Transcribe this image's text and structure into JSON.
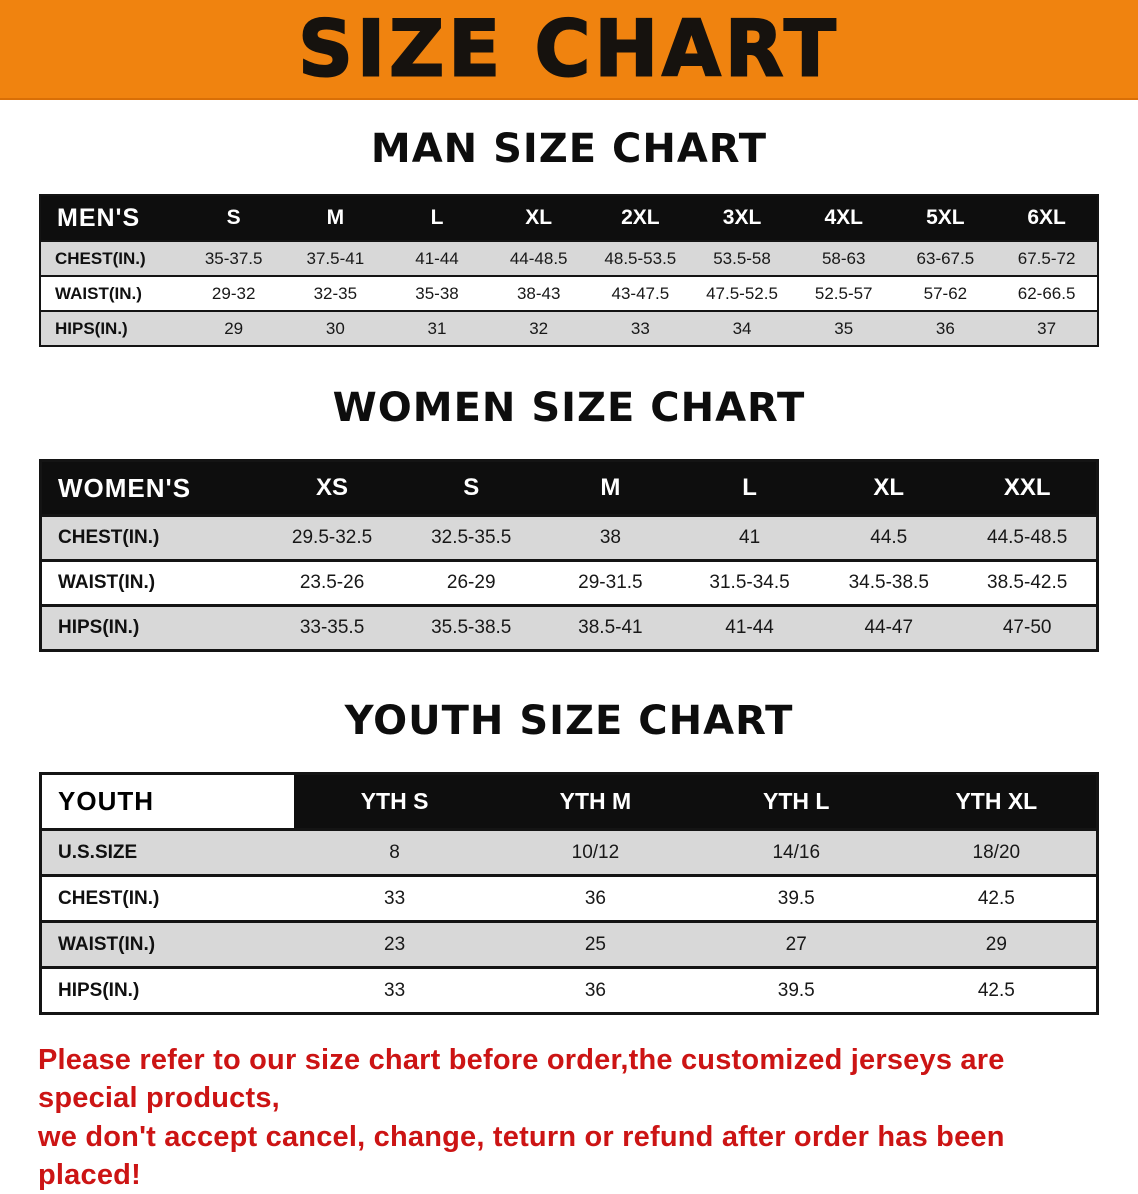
{
  "banner": {
    "title": "SIZE CHART",
    "bg_color": "#f0830f",
    "text_color": "#16120e"
  },
  "theme": {
    "header_bg": "#0e0e0e",
    "header_text": "#ffffff",
    "stripe": "#d8d8d8",
    "border": "#141414"
  },
  "men": {
    "heading": "MAN SIZE CHART",
    "table": {
      "header": [
        "MEN'S",
        "S",
        "M",
        "L",
        "XL",
        "2XL",
        "3XL",
        "4XL",
        "5XL",
        "6XL"
      ],
      "rows": [
        {
          "label": "CHEST(IN.)",
          "values": [
            "35-37.5",
            "37.5-41",
            "41-44",
            "44-48.5",
            "48.5-53.5",
            "53.5-58",
            "58-63",
            "63-67.5",
            "67.5-72"
          ]
        },
        {
          "label": "WAIST(IN.)",
          "values": [
            "29-32",
            "32-35",
            "35-38",
            "38-43",
            "43-47.5",
            "47.5-52.5",
            "52.5-57",
            "57-62",
            "62-66.5"
          ]
        },
        {
          "label": "HIPS(IN.)",
          "values": [
            "29",
            "30",
            "31",
            "32",
            "33",
            "34",
            "35",
            "36",
            "37"
          ]
        }
      ]
    }
  },
  "women": {
    "heading": "WOMEN SIZE CHART",
    "table": {
      "header": [
        "WOMEN'S",
        "XS",
        "S",
        "M",
        "L",
        "XL",
        "XXL"
      ],
      "rows": [
        {
          "label": "CHEST(IN.)",
          "values": [
            "29.5-32.5",
            "32.5-35.5",
            "38",
            "41",
            "44.5",
            "44.5-48.5"
          ]
        },
        {
          "label": "WAIST(IN.)",
          "values": [
            "23.5-26",
            "26-29",
            "29-31.5",
            "31.5-34.5",
            "34.5-38.5",
            "38.5-42.5"
          ]
        },
        {
          "label": "HIPS(IN.)",
          "values": [
            "33-35.5",
            "35.5-38.5",
            "38.5-41",
            "41-44",
            "44-47",
            "47-50"
          ]
        }
      ]
    }
  },
  "youth": {
    "heading": "YOUTH SIZE CHART",
    "table": {
      "header": [
        "YOUTH",
        "YTH S",
        "YTH M",
        "YTH L",
        "YTH XL"
      ],
      "rows": [
        {
          "label": "U.S.SIZE",
          "values": [
            "8",
            "10/12",
            "14/16",
            "18/20"
          ]
        },
        {
          "label": "CHEST(IN.)",
          "values": [
            "33",
            "36",
            "39.5",
            "42.5"
          ]
        },
        {
          "label": "WAIST(IN.)",
          "values": [
            "23",
            "25",
            "27",
            "29"
          ]
        },
        {
          "label": "HIPS(IN.)",
          "values": [
            "33",
            "36",
            "39.5",
            "42.5"
          ]
        }
      ]
    }
  },
  "disclaimer": {
    "line1": "Please refer to our size chart before order,the customized jerseys are special products,",
    "line2": "we don't accept cancel, change, teturn or refund after order has been placed!",
    "color": "#cc1414"
  }
}
